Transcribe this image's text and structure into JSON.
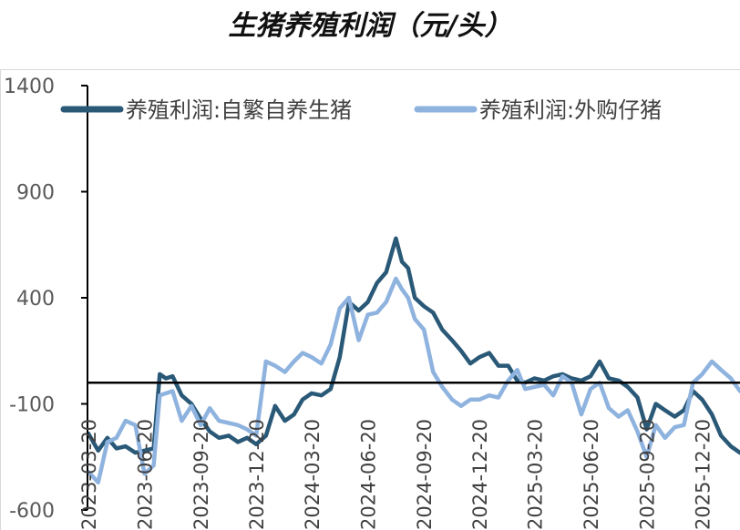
{
  "chart_data": {
    "type": "line",
    "title": "生猪养殖利润（元/头）",
    "ylim": [
      -600,
      1400
    ],
    "yticks": [
      1400,
      900,
      400,
      -100,
      -600
    ],
    "grid": false,
    "legend_position": "top",
    "x_tick_labels": [
      "2023-03-20",
      "2023-06-20",
      "2023-09-20",
      "2023-12-20",
      "2024-03-20",
      "2024-06-20",
      "2024-09-20",
      "2024-12-20",
      "2025-03-20",
      "2025-06-20",
      "2025-09-20",
      "2025-12-20"
    ],
    "x_start": "2023-03-20",
    "x_end": "2026-02-20",
    "series": [
      {
        "name": "养殖利润:自繁自养生猪",
        "color": "#2a5978",
        "points": [
          [
            "2023-03-20",
            -240
          ],
          [
            "2023-04-05",
            -320
          ],
          [
            "2023-04-20",
            -260
          ],
          [
            "2023-05-05",
            -310
          ],
          [
            "2023-05-20",
            -300
          ],
          [
            "2023-06-05",
            -330
          ],
          [
            "2023-06-20",
            -320
          ],
          [
            "2023-07-05",
            -310
          ],
          [
            "2023-07-15",
            40
          ],
          [
            "2023-07-25",
            20
          ],
          [
            "2023-08-05",
            30
          ],
          [
            "2023-08-20",
            -60
          ],
          [
            "2023-09-05",
            -100
          ],
          [
            "2023-09-20",
            -170
          ],
          [
            "2023-10-05",
            -230
          ],
          [
            "2023-10-20",
            -260
          ],
          [
            "2023-11-05",
            -250
          ],
          [
            "2023-11-20",
            -280
          ],
          [
            "2023-12-05",
            -260
          ],
          [
            "2023-12-20",
            -290
          ],
          [
            "2024-01-05",
            -250
          ],
          [
            "2024-01-20",
            -110
          ],
          [
            "2024-02-05",
            -180
          ],
          [
            "2024-02-20",
            -150
          ],
          [
            "2024-03-05",
            -80
          ],
          [
            "2024-03-20",
            -50
          ],
          [
            "2024-04-05",
            -60
          ],
          [
            "2024-04-20",
            -30
          ],
          [
            "2024-05-05",
            120
          ],
          [
            "2024-05-20",
            380
          ],
          [
            "2024-06-05",
            340
          ],
          [
            "2024-06-20",
            380
          ],
          [
            "2024-07-05",
            470
          ],
          [
            "2024-07-20",
            520
          ],
          [
            "2024-08-05",
            680
          ],
          [
            "2024-08-15",
            570
          ],
          [
            "2024-08-25",
            540
          ],
          [
            "2024-09-05",
            400
          ],
          [
            "2024-09-20",
            360
          ],
          [
            "2024-10-05",
            330
          ],
          [
            "2024-10-20",
            250
          ],
          [
            "2024-11-05",
            200
          ],
          [
            "2024-11-20",
            150
          ],
          [
            "2024-12-05",
            90
          ],
          [
            "2024-12-20",
            120
          ],
          [
            "2025-01-05",
            140
          ],
          [
            "2025-01-20",
            80
          ],
          [
            "2025-02-05",
            80
          ],
          [
            "2025-02-20",
            10
          ],
          [
            "2025-03-05",
            0
          ],
          [
            "2025-03-20",
            20
          ],
          [
            "2025-04-05",
            10
          ],
          [
            "2025-04-20",
            30
          ],
          [
            "2025-05-05",
            40
          ],
          [
            "2025-05-20",
            20
          ],
          [
            "2025-06-05",
            10
          ],
          [
            "2025-06-20",
            30
          ],
          [
            "2025-07-05",
            100
          ],
          [
            "2025-07-20",
            20
          ],
          [
            "2025-08-05",
            10
          ],
          [
            "2025-08-20",
            -20
          ],
          [
            "2025-09-05",
            -70
          ],
          [
            "2025-09-20",
            -220
          ],
          [
            "2025-10-05",
            -100
          ],
          [
            "2025-10-20",
            -130
          ],
          [
            "2025-11-05",
            -160
          ],
          [
            "2025-11-20",
            -130
          ],
          [
            "2025-12-05",
            -40
          ],
          [
            "2025-12-20",
            -80
          ],
          [
            "2026-01-05",
            -150
          ],
          [
            "2026-01-20",
            -250
          ],
          [
            "2026-02-05",
            -300
          ],
          [
            "2026-02-20",
            -330
          ]
        ]
      },
      {
        "name": "养殖利润:外购仔猪",
        "color": "#8fb3df",
        "points": [
          [
            "2023-03-20",
            -420
          ],
          [
            "2023-04-05",
            -470
          ],
          [
            "2023-04-20",
            -280
          ],
          [
            "2023-05-05",
            -260
          ],
          [
            "2023-05-20",
            -180
          ],
          [
            "2023-06-05",
            -200
          ],
          [
            "2023-06-20",
            -430
          ],
          [
            "2023-07-05",
            -390
          ],
          [
            "2023-07-15",
            -60
          ],
          [
            "2023-07-25",
            -50
          ],
          [
            "2023-08-05",
            -40
          ],
          [
            "2023-08-20",
            -180
          ],
          [
            "2023-09-05",
            -110
          ],
          [
            "2023-09-20",
            -200
          ],
          [
            "2023-10-05",
            -120
          ],
          [
            "2023-10-20",
            -180
          ],
          [
            "2023-11-05",
            -190
          ],
          [
            "2023-11-20",
            -200
          ],
          [
            "2023-12-05",
            -220
          ],
          [
            "2023-12-20",
            -250
          ],
          [
            "2024-01-05",
            100
          ],
          [
            "2024-01-20",
            80
          ],
          [
            "2024-02-05",
            50
          ],
          [
            "2024-02-20",
            100
          ],
          [
            "2024-03-05",
            140
          ],
          [
            "2024-03-20",
            120
          ],
          [
            "2024-04-05",
            90
          ],
          [
            "2024-04-20",
            180
          ],
          [
            "2024-05-05",
            350
          ],
          [
            "2024-05-20",
            400
          ],
          [
            "2024-06-05",
            200
          ],
          [
            "2024-06-20",
            320
          ],
          [
            "2024-07-05",
            330
          ],
          [
            "2024-07-20",
            380
          ],
          [
            "2024-08-05",
            490
          ],
          [
            "2024-08-15",
            440
          ],
          [
            "2024-08-25",
            400
          ],
          [
            "2024-09-05",
            300
          ],
          [
            "2024-09-20",
            250
          ],
          [
            "2024-10-05",
            50
          ],
          [
            "2024-10-20",
            -20
          ],
          [
            "2024-11-05",
            -80
          ],
          [
            "2024-11-20",
            -110
          ],
          [
            "2024-12-05",
            -80
          ],
          [
            "2024-12-20",
            -80
          ],
          [
            "2025-01-05",
            -60
          ],
          [
            "2025-01-20",
            -70
          ],
          [
            "2025-02-05",
            10
          ],
          [
            "2025-02-20",
            60
          ],
          [
            "2025-03-05",
            -30
          ],
          [
            "2025-03-20",
            -20
          ],
          [
            "2025-04-05",
            -10
          ],
          [
            "2025-04-20",
            -60
          ],
          [
            "2025-05-05",
            30
          ],
          [
            "2025-05-20",
            0
          ],
          [
            "2025-06-05",
            -150
          ],
          [
            "2025-06-20",
            -30
          ],
          [
            "2025-07-05",
            0
          ],
          [
            "2025-07-20",
            -120
          ],
          [
            "2025-08-05",
            -160
          ],
          [
            "2025-08-20",
            -130
          ],
          [
            "2025-09-05",
            -230
          ],
          [
            "2025-09-20",
            -350
          ],
          [
            "2025-10-05",
            -200
          ],
          [
            "2025-10-20",
            -260
          ],
          [
            "2025-11-05",
            -210
          ],
          [
            "2025-11-20",
            -200
          ],
          [
            "2025-12-05",
            0
          ],
          [
            "2025-12-20",
            40
          ],
          [
            "2026-01-05",
            100
          ],
          [
            "2026-01-20",
            60
          ],
          [
            "2026-02-05",
            20
          ],
          [
            "2026-02-20",
            -40
          ]
        ]
      }
    ]
  }
}
